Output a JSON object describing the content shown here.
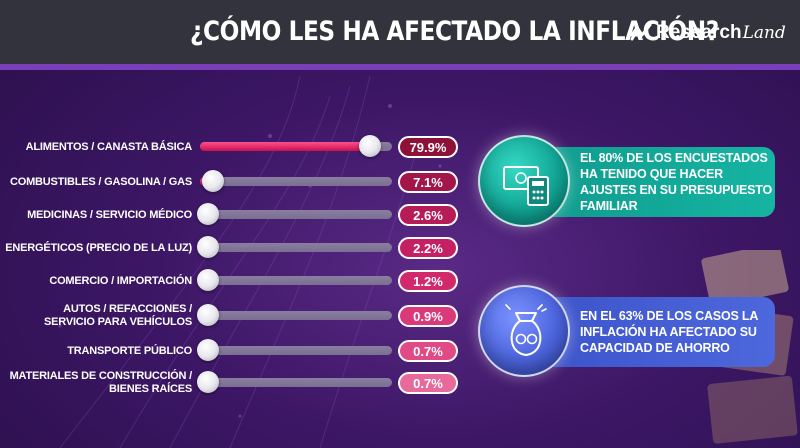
{
  "header": {
    "title": "¿CÓMO LES HA AFECTADO LA INFLACIÓN?",
    "logo_text": "Research",
    "logo_script": "Land"
  },
  "chart_data": {
    "type": "bar",
    "categories": [
      "ALIMENTOS / CANASTA BÁSICA",
      "COMBUSTIBLES / GASOLINA / GAS",
      "MEDICINAS / SERVICIO MÉDICO",
      "ENERGÉTICOS (PRECIO DE LA LUZ)",
      "COMERCIO / IMPORTACIÓN",
      "AUTOS / REFACCIONES / SERVICIO PARA VEHÍCULOS",
      "TRANSPORTE PÚBLICO",
      "MATERIALES DE CONSTRUCCIÓN / BIENES RAÍCES"
    ],
    "category_lines": [
      [
        "ALIMENTOS / CANASTA BÁSICA"
      ],
      [
        "COMBUSTIBLES / GASOLINA / GAS"
      ],
      [
        "MEDICINAS / SERVICIO MÉDICO"
      ],
      [
        "ENERGÉTICOS (PRECIO DE LA LUZ)"
      ],
      [
        "COMERCIO / IMPORTACIÓN"
      ],
      [
        "AUTOS / REFACCIONES /",
        "SERVICIO PARA VEHÍCULOS"
      ],
      [
        "TRANSPORTE PÚBLICO"
      ],
      [
        "MATERIALES DE CONSTRUCCIÓN /",
        "BIENES RAÍCES"
      ]
    ],
    "values": [
      79.9,
      7.1,
      2.6,
      2.2,
      1.2,
      0.9,
      0.7,
      0.7
    ],
    "value_labels": [
      "79.9%",
      "7.1%",
      "2.6%",
      "2.2%",
      "1.2%",
      "0.9%",
      "0.7%",
      "0.7%"
    ],
    "unit": "%",
    "label_colors": [
      "#8e1238",
      "#a3164a",
      "#b71c57",
      "#c42063",
      "#d02a6d",
      "#db3a7a",
      "#e04a86",
      "#e86a9c"
    ],
    "bar_color": "#e8226a",
    "track_color": "#7a6f92"
  },
  "callouts": [
    {
      "text": "EL 80% DE LOS ENCUESTADOS HA TENIDO QUE HACER AJUSTES EN SU PRESUPUESTO FAMILIAR",
      "color": "#12a897",
      "icon": "money-calculator-icon"
    },
    {
      "text": "EN EL 63% DE LOS CASOS LA INFLACIÓN HA AFECTADO SU CAPACIDAD DE AHORRO",
      "color": "#4760d6",
      "icon": "money-jar-icon"
    }
  ]
}
